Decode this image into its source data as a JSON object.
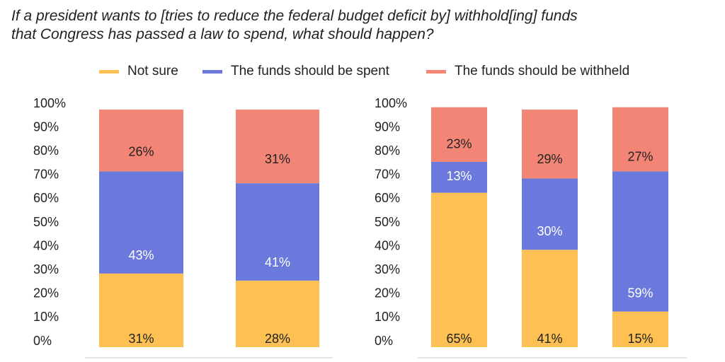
{
  "title": {
    "line1": "If a president wants to [tries to reduce the federal budget deficit by] withhold[ing] funds",
    "line2": "that Congress has passed a law to spend, what should happen?"
  },
  "legend": [
    {
      "label": "Not sure",
      "color": "#FDC052"
    },
    {
      "label": "The funds should be spent",
      "color": "#6A79DB"
    },
    {
      "label": "The funds should be withheld",
      "color": "#F38576"
    }
  ],
  "colors": {
    "not_sure": "#FDC052",
    "spent": "#6A79DB",
    "withheld": "#F38576",
    "axis": "#cccccc"
  },
  "chart_data": [
    {
      "type": "stacked-bar",
      "y_ticks": [
        "100%",
        "90%",
        "80%",
        "70%",
        "60%",
        "50%",
        "40%",
        "30%",
        "20%",
        "10%",
        "0%"
      ],
      "ylim": [
        0,
        100
      ],
      "series_order": [
        "Not sure",
        "The funds should be spent",
        "The funds should be withheld"
      ],
      "bars": [
        {
          "values": [
            31,
            43,
            26
          ],
          "labels": [
            "31%",
            "43%",
            "26%"
          ]
        },
        {
          "values": [
            28,
            41,
            31
          ],
          "labels": [
            "28%",
            "41%",
            "31%"
          ]
        }
      ]
    },
    {
      "type": "stacked-bar",
      "y_ticks": [
        "100%",
        "90%",
        "80%",
        "70%",
        "60%",
        "50%",
        "40%",
        "30%",
        "20%",
        "10%",
        "0%"
      ],
      "ylim": [
        0,
        100
      ],
      "series_order": [
        "Not sure",
        "The funds should be spent",
        "The funds should be withheld"
      ],
      "bars": [
        {
          "values": [
            65,
            13,
            23
          ],
          "labels": [
            "65%",
            "13%",
            "23%"
          ]
        },
        {
          "values": [
            41,
            30,
            29
          ],
          "labels": [
            "41%",
            "30%",
            "29%"
          ]
        },
        {
          "values": [
            15,
            59,
            27
          ],
          "labels": [
            "15%",
            "59%",
            "27%"
          ]
        }
      ]
    }
  ]
}
